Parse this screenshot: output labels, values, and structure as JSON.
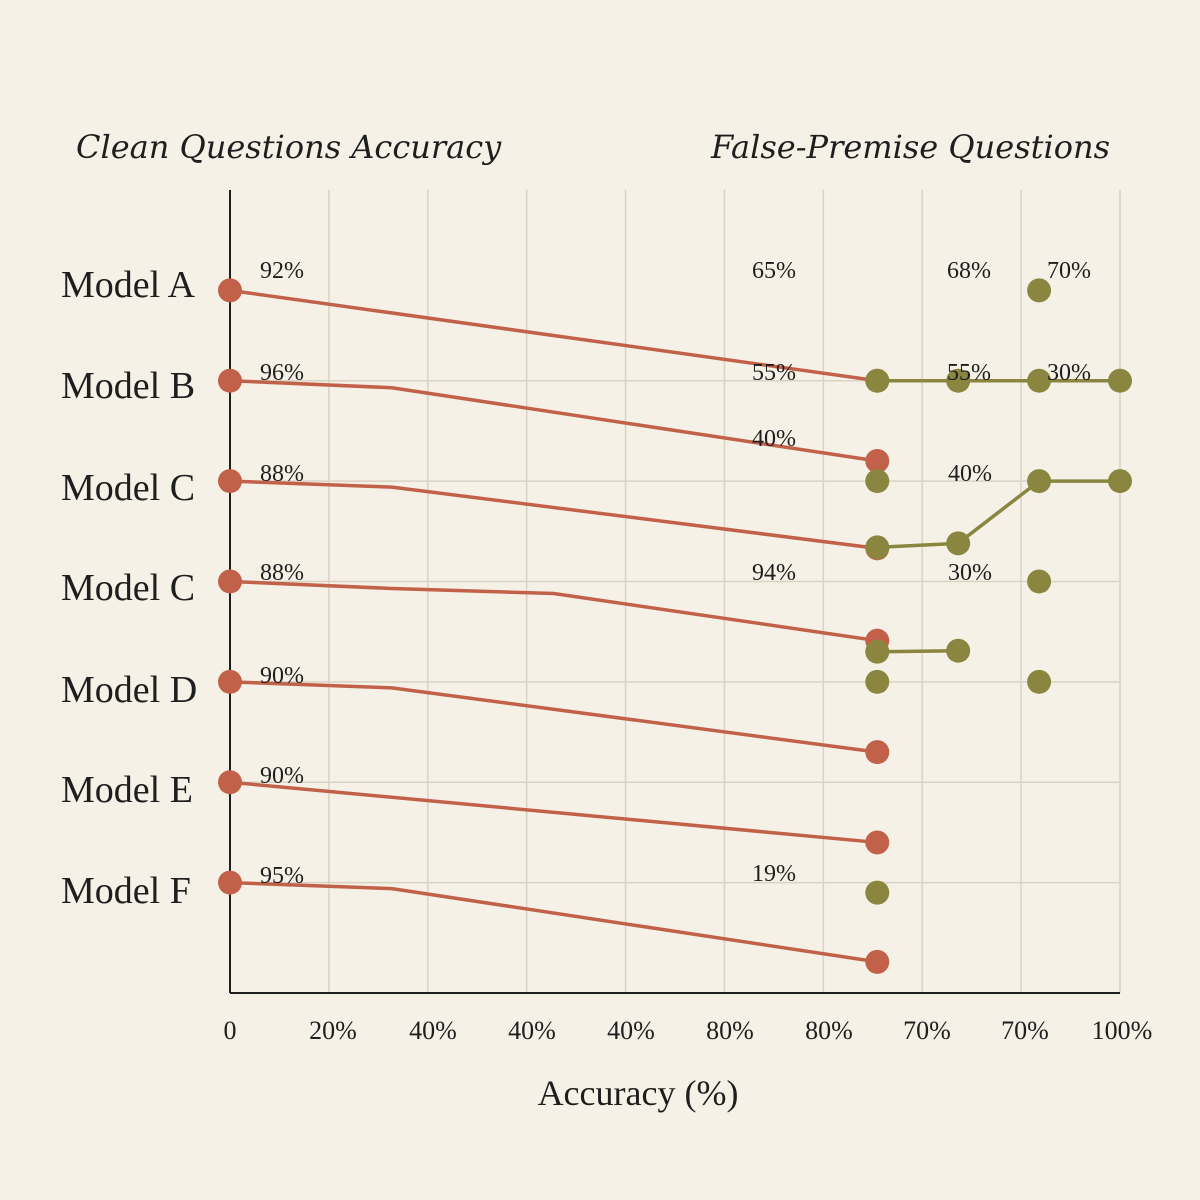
{
  "chart_data": {
    "type": "line",
    "panels": [
      {
        "title": "Clean Questions Accuracy",
        "color": "#c2614a"
      },
      {
        "title": "False-Premise Questions",
        "color": "#8a8640"
      }
    ],
    "xlabel": "Accuracy (%)",
    "x_tick_labels": [
      "0",
      "20%",
      "40%",
      "40%",
      "40%",
      "80%",
      "80%",
      "70%",
      "70%",
      "100%"
    ],
    "models": [
      "Model A",
      "Model B",
      "Model C",
      "Model C",
      "Model D",
      "Model E",
      "Model F"
    ],
    "clean_series": [
      {
        "points": [
          [
            0,
            100
          ],
          [
            80,
            91
          ]
        ]
      },
      {
        "points": [
          [
            0,
            91
          ],
          [
            20,
            90.3
          ],
          [
            80,
            83
          ]
        ]
      },
      {
        "points": [
          [
            0,
            81
          ],
          [
            20,
            80.4
          ],
          [
            80,
            74.3
          ]
        ]
      },
      {
        "points": [
          [
            0,
            71
          ],
          [
            20,
            70.3
          ],
          [
            40,
            69.8
          ],
          [
            80,
            65.1
          ]
        ]
      },
      {
        "points": [
          [
            0,
            61
          ],
          [
            20,
            60.4
          ],
          [
            80,
            54
          ]
        ]
      },
      {
        "points": [
          [
            0,
            51
          ],
          [
            80,
            45
          ]
        ]
      },
      {
        "points": [
          [
            0,
            41
          ],
          [
            20,
            40.4
          ],
          [
            80,
            33.1
          ]
        ]
      }
    ],
    "false_premise_series": [
      {
        "points": [
          [
            100,
            100
          ]
        ]
      },
      {
        "points": [
          [
            80,
            91
          ],
          [
            90,
            91
          ],
          [
            100,
            91
          ],
          [
            110,
            91
          ]
        ]
      },
      {
        "points": [
          [
            80,
            81
          ]
        ]
      },
      {
        "points": [
          [
            80,
            74.4
          ],
          [
            90,
            74.8
          ],
          [
            100,
            81
          ],
          [
            110,
            81
          ]
        ]
      },
      {
        "points": [
          [
            100,
            71
          ]
        ]
      },
      {
        "points": [
          [
            80,
            64
          ],
          [
            90,
            64.1
          ]
        ]
      },
      {
        "points": [
          [
            80,
            61
          ]
        ]
      },
      {
        "points": [
          [
            100,
            61
          ]
        ]
      },
      {
        "points": [
          [
            80,
            40
          ]
        ]
      }
    ],
    "clean_labels": [
      "92%",
      "96%",
      "88%",
      "88%",
      "90%",
      "90%",
      "95%"
    ],
    "right_labels": [
      "65%",
      "55%",
      "40%",
      "94%",
      "19%",
      "68%",
      "70%",
      "55%",
      "30%",
      "40%",
      "30%"
    ],
    "xlim": [
      0,
      110
    ],
    "ylim": [
      30,
      110
    ],
    "grid": true
  }
}
